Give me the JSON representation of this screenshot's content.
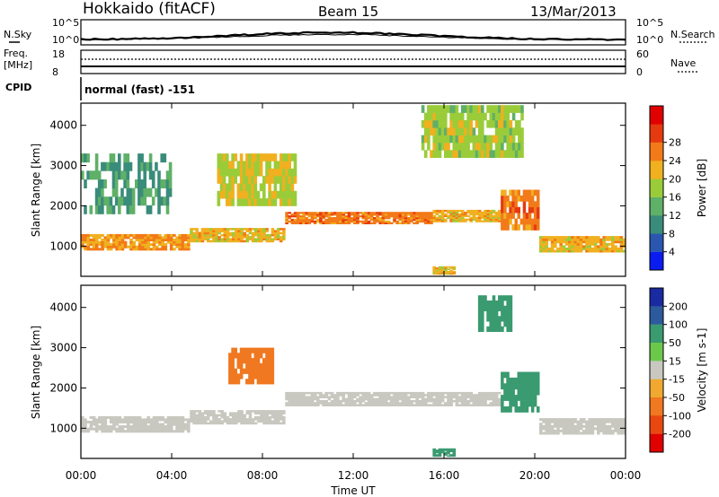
{
  "header": {
    "station": "Hokkaido (fitACF)",
    "beam": "Beam 15",
    "date": "13/Mar/2013"
  },
  "params": {
    "nsky_label": "N.Sky",
    "nsky_ticks": [
      "10^5",
      "10^0"
    ],
    "nsearch_label": "N.Search",
    "nsearch_ticks": [
      "10^5",
      "10^0"
    ],
    "freq_label": "Freq.",
    "freq_unit": "[MHz]",
    "freq_ticks": [
      "18",
      "8"
    ],
    "nave_label": "Nave",
    "nave_ticks": [
      "60",
      "0"
    ],
    "cpid_label": "CPID",
    "cpid_value": "normal (fast) -151"
  },
  "chart_data": [
    {
      "type": "heatmap",
      "name": "power",
      "ylabel": "Slant Range [km]",
      "yticks": [
        "1000",
        "2000",
        "3000",
        "4000"
      ],
      "ylim": [
        250,
        4550
      ],
      "xlim": [
        0,
        24
      ],
      "colorbar": {
        "label": "Power [dB]",
        "ticks": [
          "4",
          "8",
          "12",
          "16",
          "20",
          "24",
          "28"
        ],
        "colors": [
          "#0a1cf0",
          "#2a56b0",
          "#3a8c7a",
          "#5fb068",
          "#9acc3a",
          "#f0b020",
          "#f27a18",
          "#e53a10",
          "#e00000"
        ]
      },
      "regions": [
        {
          "t0": 0.0,
          "t1": 4.8,
          "r0": 900,
          "r1": 1300,
          "level": 24
        },
        {
          "t0": 4.8,
          "t1": 9.0,
          "r0": 1100,
          "r1": 1450,
          "level": 22
        },
        {
          "t0": 9.0,
          "t1": 15.5,
          "r0": 1550,
          "r1": 1850,
          "level": 26
        },
        {
          "t0": 15.5,
          "t1": 18.5,
          "r0": 1600,
          "r1": 1900,
          "level": 22
        },
        {
          "t0": 18.5,
          "t1": 20.2,
          "r0": 1400,
          "r1": 2400,
          "level": 26
        },
        {
          "t0": 20.2,
          "t1": 24.0,
          "r0": 850,
          "r1": 1250,
          "level": 22
        },
        {
          "t0": 0.0,
          "t1": 4.0,
          "r0": 1800,
          "r1": 3300,
          "level": 12
        },
        {
          "t0": 6.0,
          "t1": 9.5,
          "r0": 2000,
          "r1": 3300,
          "level": 20
        },
        {
          "t0": 15.0,
          "t1": 19.5,
          "r0": 3200,
          "r1": 4500,
          "level": 18
        },
        {
          "t0": 15.5,
          "t1": 16.5,
          "r0": 300,
          "r1": 500,
          "level": 22
        }
      ]
    },
    {
      "type": "heatmap",
      "name": "velocity",
      "xlabel": "Time UT",
      "xticks": [
        "00:00",
        "04:00",
        "08:00",
        "12:00",
        "16:00",
        "20:00",
        "00:00"
      ],
      "ylabel": "Slant Range [km]",
      "yticks": [
        "1000",
        "2000",
        "3000",
        "4000"
      ],
      "ylim": [
        250,
        4550
      ],
      "xlim": [
        0,
        24
      ],
      "colorbar": {
        "label": "Velocity [m s-1]",
        "ticks": [
          "200",
          "100",
          "50",
          "15",
          "-15",
          "-50",
          "-100",
          "-200"
        ],
        "colors": [
          "#1a2aa0",
          "#2c5a9c",
          "#3a9a70",
          "#6cc84a",
          "#c8c8c0",
          "#f0a830",
          "#f07820",
          "#e84810",
          "#e00000"
        ]
      },
      "regions": [
        {
          "t0": 0.0,
          "t1": 4.8,
          "r0": 900,
          "r1": 1300,
          "level": 0
        },
        {
          "t0": 4.8,
          "t1": 9.0,
          "r0": 1100,
          "r1": 1450,
          "level": 0
        },
        {
          "t0": 9.0,
          "t1": 18.5,
          "r0": 1550,
          "r1": 1900,
          "level": 0
        },
        {
          "t0": 18.5,
          "t1": 20.2,
          "r0": 1400,
          "r1": 2400,
          "level": 40
        },
        {
          "t0": 20.2,
          "t1": 24.0,
          "r0": 850,
          "r1": 1250,
          "level": 0
        },
        {
          "t0": 17.5,
          "t1": 19.0,
          "r0": 3400,
          "r1": 4300,
          "level": 40
        },
        {
          "t0": 6.5,
          "t1": 8.5,
          "r0": 2100,
          "r1": 3000,
          "level": -40
        },
        {
          "t0": 15.5,
          "t1": 16.5,
          "r0": 300,
          "r1": 500,
          "level": 40
        }
      ]
    }
  ]
}
